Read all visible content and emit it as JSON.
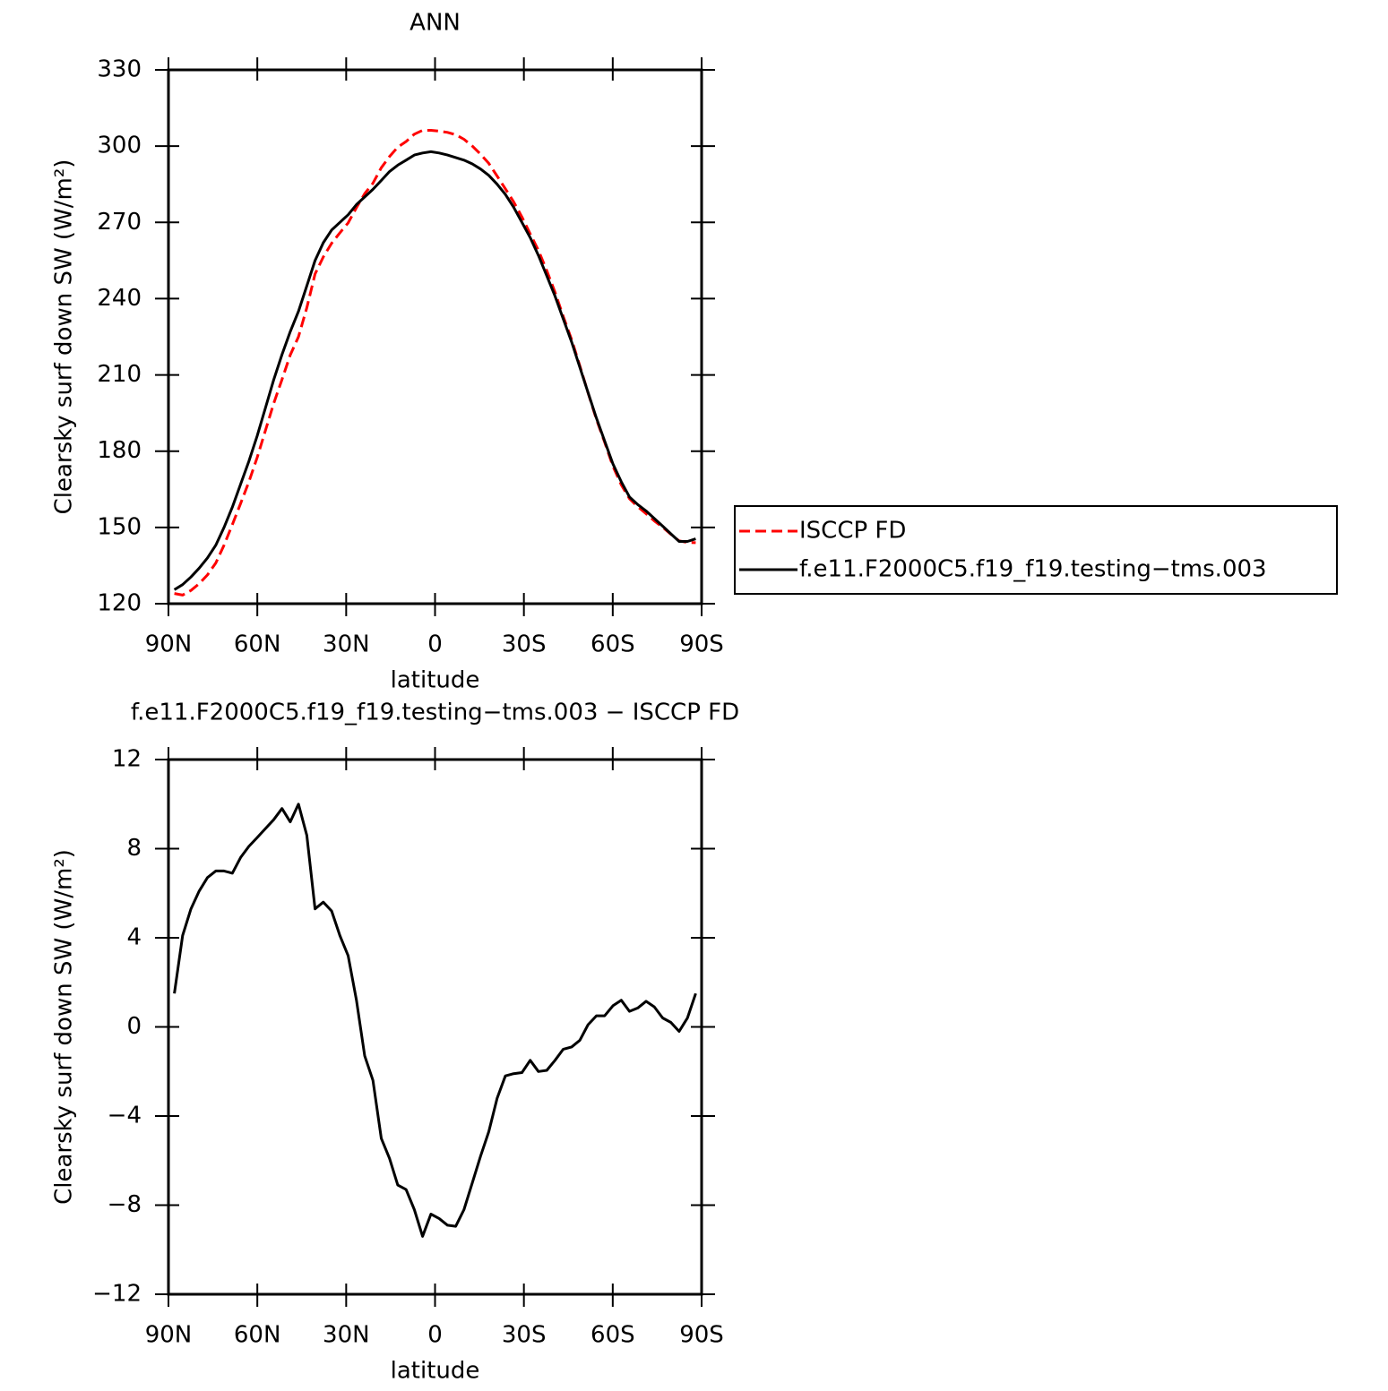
{
  "chart_data": [
    {
      "type": "line",
      "title": "ANN",
      "xlabel": "latitude",
      "ylabel": "Clearsky surf down SW (W/m²)",
      "x": [
        88,
        85.21,
        82.41,
        79.62,
        76.83,
        74.03,
        71.24,
        68.44,
        65.65,
        62.86,
        60.06,
        57.27,
        54.48,
        51.68,
        48.89,
        46.1,
        43.3,
        40.51,
        37.71,
        34.92,
        32.13,
        29.33,
        26.54,
        23.75,
        20.95,
        18.16,
        15.37,
        12.57,
        9.78,
        6.98,
        4.19,
        1.4,
        -1.4,
        -4.19,
        -6.98,
        -9.78,
        -12.57,
        -15.37,
        -18.16,
        -20.95,
        -23.75,
        -26.54,
        -29.33,
        -32.13,
        -34.92,
        -37.71,
        -40.51,
        -43.3,
        -46.1,
        -48.89,
        -51.68,
        -54.48,
        -57.27,
        -60.06,
        -62.86,
        -65.65,
        -68.44,
        -71.24,
        -74.03,
        -76.83,
        -79.62,
        -82.41,
        -85.21,
        -88
      ],
      "series": [
        {
          "name": "ISCCP FD",
          "color": "#ff0000",
          "dash": true,
          "values": [
            124.0,
            123.4,
            125.2,
            127.9,
            131.3,
            136.0,
            143.0,
            151.1,
            159.4,
            167.9,
            177.5,
            188.1,
            198.7,
            208.2,
            217.8,
            225.0,
            236.4,
            249.7,
            256.4,
            261.8,
            265.9,
            269.8,
            275.8,
            281.3,
            285.4,
            291.5,
            295.9,
            299.6,
            301.8,
            304.7,
            306.2,
            306.2,
            305.9,
            305.4,
            304.5,
            302.7,
            300.0,
            296.8,
            293.2,
            288.2,
            283.2,
            278.1,
            272.1,
            265.5,
            259.0,
            251.0,
            242.5,
            233.0,
            223.9,
            213.6,
            202.9,
            192.5,
            183.5,
            174.1,
            166.8,
            161.3,
            158.2,
            155.4,
            152.6,
            150.1,
            147.3,
            144.7,
            144.1,
            144.0
          ]
        },
        {
          "name": "f.e11.F2000C5.f19_f19.testing−tms.003",
          "color": "#000000",
          "dash": false,
          "values": [
            125.5,
            127.5,
            130.5,
            134,
            138,
            143,
            150,
            158,
            167,
            176,
            186,
            197,
            208,
            218,
            227,
            235,
            245,
            255,
            262,
            267,
            270,
            273,
            277,
            280,
            283,
            286.5,
            290,
            292.5,
            294.5,
            296.5,
            297.3,
            297.8,
            297.3,
            296.5,
            295.5,
            294.5,
            293,
            291,
            288.5,
            285,
            281,
            276,
            270,
            264,
            257,
            249,
            241,
            232,
            223,
            213,
            203,
            193,
            184,
            175,
            168,
            162,
            159,
            156.5,
            153.5,
            150.5,
            147.5,
            144.5,
            144.5,
            145.5
          ]
        }
      ],
      "xlim": [
        90,
        -90
      ],
      "xticks": [
        {
          "value": 90,
          "label": "90N"
        },
        {
          "value": 60,
          "label": "60N"
        },
        {
          "value": 30,
          "label": "30N"
        },
        0,
        {
          "value": -30,
          "label": "30S"
        },
        {
          "value": -60,
          "label": "60S"
        },
        {
          "value": -90,
          "label": "90S"
        }
      ],
      "ylim": [
        120,
        330
      ],
      "yticks": [
        120,
        150,
        180,
        210,
        240,
        270,
        300,
        330
      ],
      "legend": "right"
    },
    {
      "type": "line",
      "title": "f.e11.F2000C5.f19_f19.testing−tms.003 − ISCCP FD",
      "xlabel": "latitude",
      "ylabel": "Clearsky surf down SW (W/m²)",
      "x": [
        88,
        85.21,
        82.41,
        79.62,
        76.83,
        74.03,
        71.24,
        68.44,
        65.65,
        62.86,
        60.06,
        57.27,
        54.48,
        51.68,
        48.89,
        46.1,
        43.3,
        40.51,
        37.71,
        34.92,
        32.13,
        29.33,
        26.54,
        23.75,
        20.95,
        18.16,
        15.37,
        12.57,
        9.78,
        6.98,
        4.19,
        1.4,
        -1.4,
        -4.19,
        -6.98,
        -9.78,
        -12.57,
        -15.37,
        -18.16,
        -20.95,
        -23.75,
        -26.54,
        -29.33,
        -32.13,
        -34.92,
        -37.71,
        -40.51,
        -43.3,
        -46.1,
        -48.89,
        -51.68,
        -54.48,
        -57.27,
        -60.06,
        -62.86,
        -65.65,
        -68.44,
        -71.24,
        -74.03,
        -76.83,
        -79.62,
        -82.41,
        -85.21,
        -88
      ],
      "values": [
        1.5,
        4.1,
        5.3,
        6.1,
        6.7,
        7.0,
        7.0,
        6.9,
        7.6,
        8.1,
        8.5,
        8.9,
        9.3,
        9.8,
        9.2,
        10.0,
        8.6,
        5.3,
        5.6,
        5.2,
        4.1,
        3.2,
        1.2,
        -1.3,
        -2.4,
        -5.0,
        -5.9,
        -7.1,
        -7.3,
        -8.2,
        -9.4,
        -8.4,
        -8.6,
        -8.9,
        -8.95,
        -8.2,
        -7.0,
        -5.8,
        -4.7,
        -3.2,
        -2.2,
        -2.1,
        -2.05,
        -1.5,
        -2.0,
        -1.95,
        -1.5,
        -1.0,
        -0.9,
        -0.6,
        0.1,
        0.5,
        0.5,
        0.95,
        1.2,
        0.7,
        0.85,
        1.15,
        0.9,
        0.4,
        0.2,
        -0.2,
        0.4,
        1.5
      ],
      "color": "#000000",
      "xlim": [
        90,
        -90
      ],
      "xticks": [
        {
          "value": 90,
          "label": "90N"
        },
        {
          "value": 60,
          "label": "60N"
        },
        {
          "value": 30,
          "label": "30N"
        },
        0,
        {
          "value": -30,
          "label": "30S"
        },
        {
          "value": -60,
          "label": "60S"
        },
        {
          "value": -90,
          "label": "90S"
        }
      ],
      "ylim": [
        -12,
        12
      ],
      "yticks": [
        {
          "value": -12,
          "label": "−12"
        },
        {
          "value": -8,
          "label": "−8"
        },
        {
          "value": -4,
          "label": "−4"
        },
        0,
        4,
        8,
        12
      ]
    }
  ]
}
